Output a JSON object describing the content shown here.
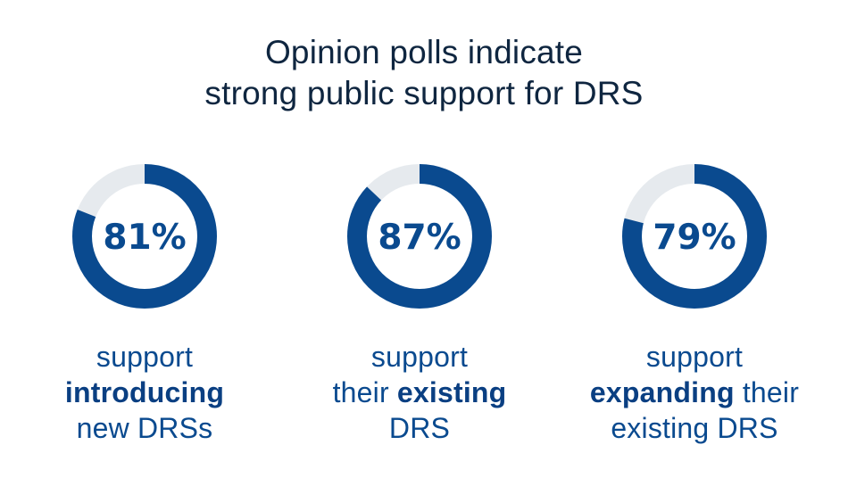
{
  "title": {
    "line1": "Opinion polls indicate",
    "line2": "strong public support for DRS"
  },
  "colors": {
    "ring": "#0a4a8f",
    "track": "#e6eaee",
    "title": "#0f2640"
  },
  "chart_data": {
    "type": "pie",
    "title": "Opinion polls indicate strong public support for DRS",
    "series": [
      {
        "value": 81,
        "label": "81%"
      },
      {
        "value": 87,
        "label": "87%"
      },
      {
        "value": 79,
        "label": "79%"
      }
    ],
    "captions": [
      {
        "line1": "support",
        "line2_bold": "introducing",
        "line2_rest": "",
        "line3": "new DRSs"
      },
      {
        "line1": "support",
        "line2_pre": "their ",
        "line2_bold": "existing",
        "line3": "DRS"
      },
      {
        "line1": "support",
        "line2_bold": "expanding",
        "line2_rest": " their",
        "line3": "existing DRS"
      }
    ]
  }
}
